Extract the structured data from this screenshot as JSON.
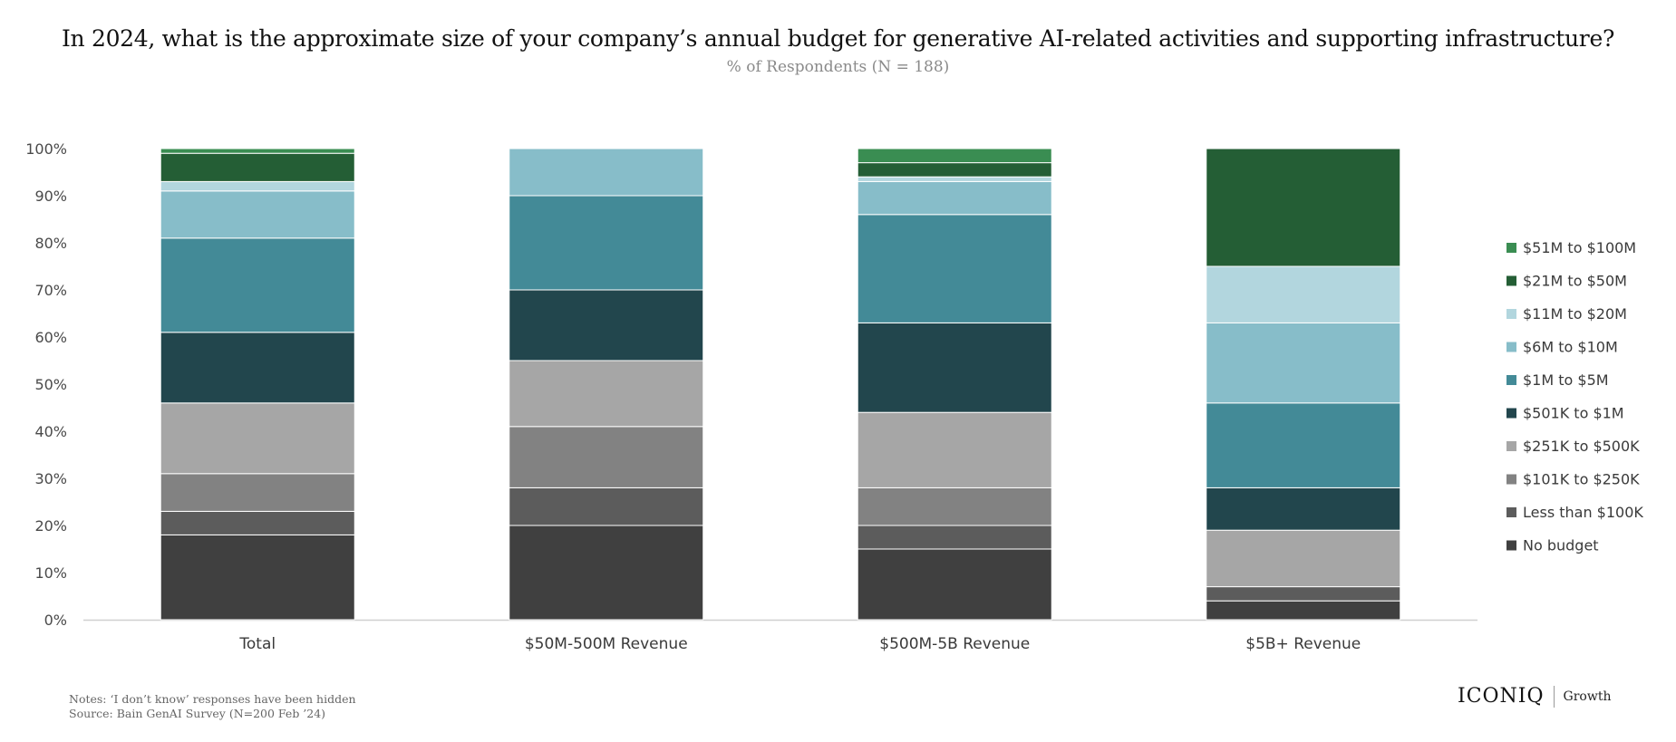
{
  "title": "In 2024, what is the approximate size of your company’s annual budget for generative AI-related activities and supporting infrastructure?",
  "subtitle": "% of Respondents (N = 188)",
  "notes": {
    "line1": "Notes: ‘I don’t know’ responses have been hidden",
    "line2": "Source: Bain GenAI Survey (N=200 Feb ’24)"
  },
  "brand": {
    "logo": "ICONIQ",
    "sub": "Growth"
  },
  "chart_data": {
    "type": "bar",
    "stacked": true,
    "categories": [
      "Total",
      "$50M-500M Revenue",
      "$500M-5B Revenue",
      "$5B+ Revenue"
    ],
    "ylim": [
      0,
      100
    ],
    "yticks": [
      "0%",
      "10%",
      "20%",
      "30%",
      "40%",
      "50%",
      "60%",
      "70%",
      "80%",
      "90%",
      "100%"
    ],
    "grid": false,
    "legend_position": "right",
    "series": [
      {
        "name": "No budget",
        "color": "#404040",
        "values": [
          18,
          20,
          15,
          4
        ]
      },
      {
        "name": "Less than $100K",
        "color": "#5c5c5c",
        "values": [
          5,
          8,
          5,
          3
        ]
      },
      {
        "name": "$101K to $250K",
        "color": "#828282",
        "values": [
          8,
          13,
          8,
          0
        ]
      },
      {
        "name": "$251K to $500K",
        "color": "#a6a6a6",
        "values": [
          15,
          14,
          16,
          12
        ]
      },
      {
        "name": "$501K to $1M",
        "color": "#22464d",
        "values": [
          15,
          15,
          19,
          9
        ]
      },
      {
        "name": "$1M to $5M",
        "color": "#438a97",
        "values": [
          20,
          20,
          23,
          18
        ]
      },
      {
        "name": "$6M to $10M",
        "color": "#87bdc9",
        "values": [
          10,
          10,
          7,
          17
        ]
      },
      {
        "name": "$11M to $20M",
        "color": "#b2d6de",
        "values": [
          2,
          0,
          1,
          12
        ]
      },
      {
        "name": "$21M to $50M",
        "color": "#245e35",
        "values": [
          6,
          0,
          3,
          25
        ]
      },
      {
        "name": "$51M to $100M",
        "color": "#3a8d52",
        "values": [
          1,
          0,
          3,
          0
        ]
      }
    ]
  }
}
